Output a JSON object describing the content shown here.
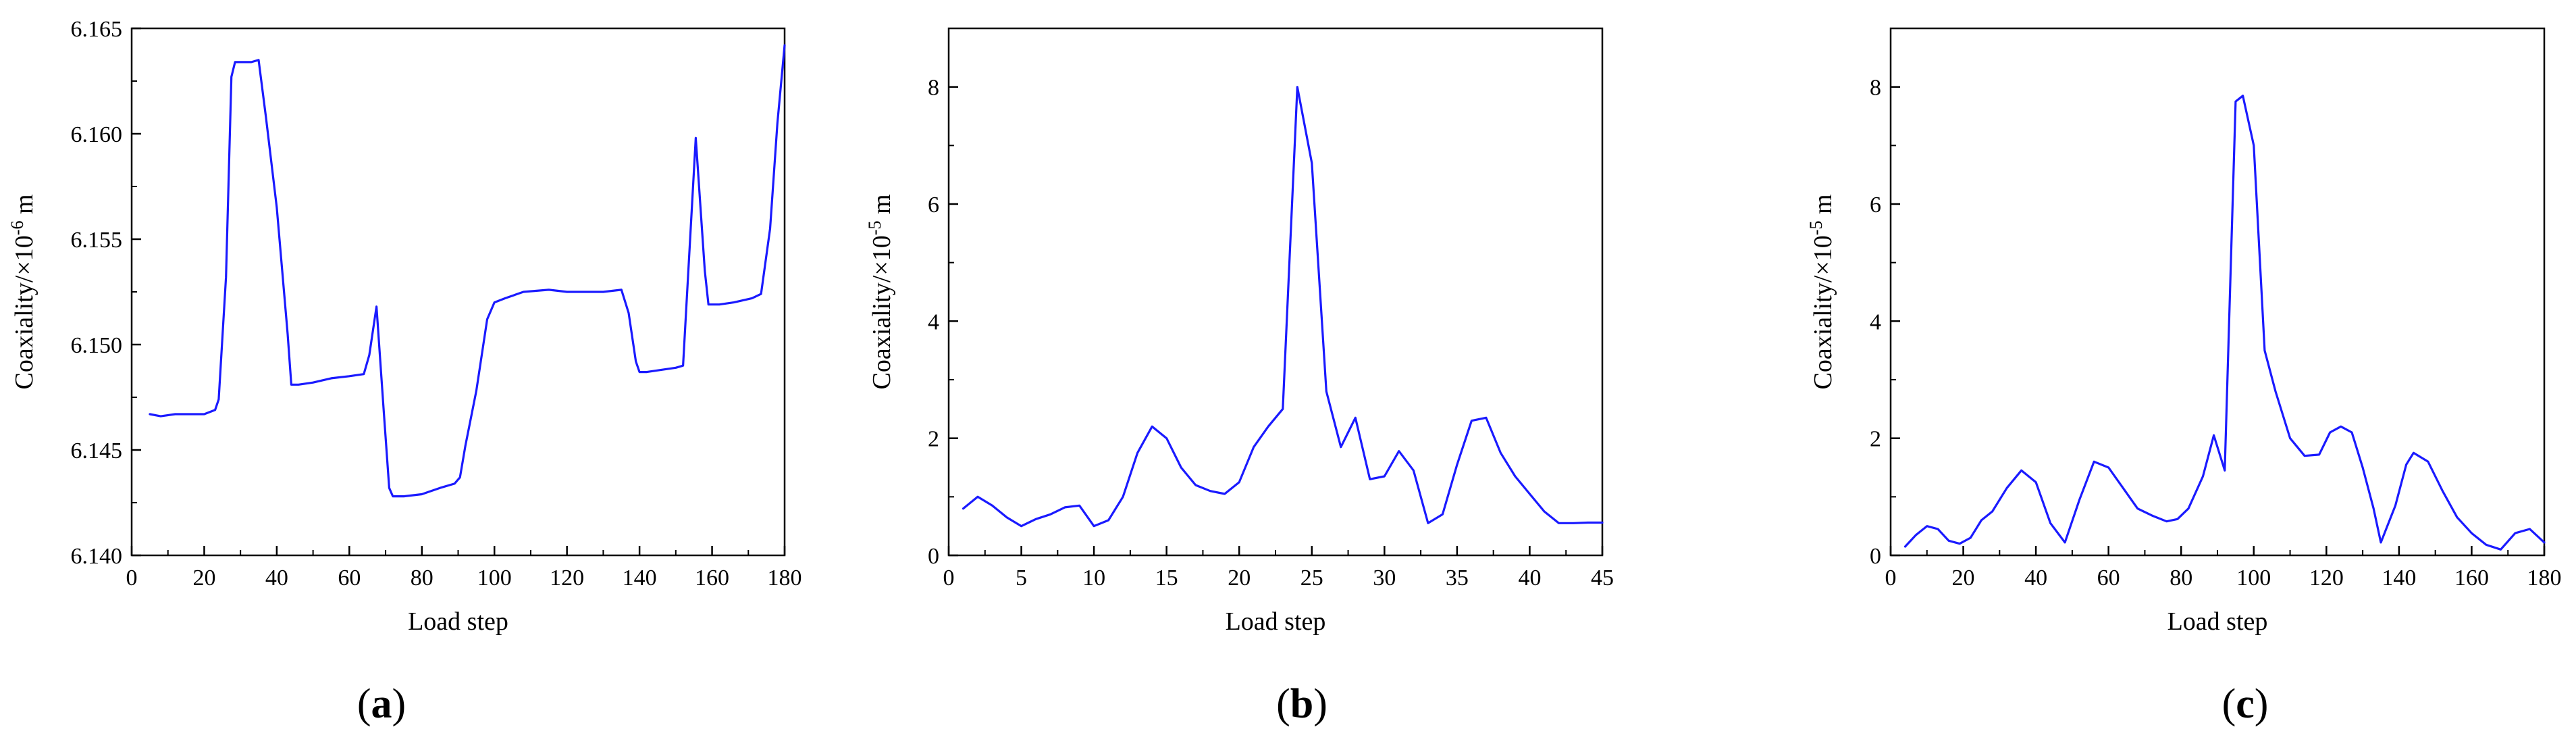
{
  "figure": {
    "panels": [
      "a",
      "b",
      "c"
    ],
    "colors": {
      "line": "#1a1aff",
      "axis": "#000000",
      "background": "#ffffff"
    }
  },
  "chart_data": [
    {
      "type": "line",
      "caption": "a",
      "xlabel": "Load step",
      "ylabel": "Coaxiality/×10",
      "ylabel_exp": "-6",
      "ylabel_unit": " m",
      "xlim": [
        0,
        180
      ],
      "ylim": [
        6.14,
        6.165
      ],
      "xticks": [
        "0",
        "20",
        "40",
        "60",
        "80",
        "100",
        "120",
        "140",
        "160",
        "180"
      ],
      "yticks": [
        "6.140",
        "6.145",
        "6.150",
        "6.155",
        "6.160",
        "6.165"
      ],
      "grid": false,
      "legend": "none",
      "series": [
        {
          "color": "#1a1aff",
          "x": [
            5,
            8,
            12,
            16,
            20,
            23,
            24,
            26,
            27.5,
            28.5,
            30,
            33,
            35,
            37,
            40,
            43,
            44,
            46,
            50,
            55,
            60,
            64,
            65.5,
            67.5,
            69.5,
            71,
            72,
            75,
            80,
            85,
            89,
            90.5,
            92,
            95,
            98,
            100,
            103,
            108,
            115,
            120,
            125,
            130,
            135,
            137,
            139,
            140,
            142,
            146,
            150,
            152,
            155.5,
            158,
            159,
            162,
            166,
            171,
            173.5,
            176,
            178,
            180
          ],
          "y": [
            6.1467,
            6.1466,
            6.1467,
            6.1467,
            6.1467,
            6.1469,
            6.1474,
            6.1532,
            6.1627,
            6.1634,
            6.1634,
            6.1634,
            6.1635,
            6.1608,
            6.1565,
            6.1505,
            6.1481,
            6.1481,
            6.1482,
            6.1484,
            6.1485,
            6.1486,
            6.1495,
            6.1518,
            6.1468,
            6.1432,
            6.1428,
            6.1428,
            6.1429,
            6.1432,
            6.1434,
            6.1437,
            6.1452,
            6.1478,
            6.1512,
            6.152,
            6.1522,
            6.1525,
            6.1526,
            6.1525,
            6.1525,
            6.1525,
            6.1526,
            6.1515,
            6.1492,
            6.1487,
            6.1487,
            6.1488,
            6.1489,
            6.149,
            6.1598,
            6.1535,
            6.1519,
            6.1519,
            6.152,
            6.1522,
            6.1524,
            6.1555,
            6.1605,
            6.1642
          ]
        }
      ]
    },
    {
      "type": "line",
      "caption": "b",
      "xlabel": "Load step",
      "ylabel": "Coaxiality/×10",
      "ylabel_exp": "-5",
      "ylabel_unit": " m",
      "xlim": [
        0,
        45
      ],
      "ylim": [
        0,
        9
      ],
      "xticks": [
        "0",
        "5",
        "10",
        "15",
        "20",
        "25",
        "30",
        "35",
        "40",
        "45"
      ],
      "yticks": [
        "0",
        "2",
        "4",
        "6",
        "8"
      ],
      "grid": false,
      "legend": "none",
      "series": [
        {
          "color": "#1a1aff",
          "x": [
            1,
            2,
            3,
            4,
            5,
            6,
            7,
            8,
            9,
            10,
            11,
            12,
            13,
            14,
            15,
            16,
            17,
            18,
            19,
            20,
            21,
            22,
            23,
            24,
            25,
            26,
            27,
            28,
            29,
            30,
            31,
            32,
            33,
            34,
            35,
            36,
            37,
            38,
            39,
            40,
            41,
            42,
            43,
            44,
            45
          ],
          "y": [
            0.8,
            1.0,
            0.85,
            0.65,
            0.5,
            0.62,
            0.7,
            0.82,
            0.85,
            0.5,
            0.6,
            1.0,
            1.75,
            2.2,
            2.0,
            1.5,
            1.2,
            1.1,
            1.05,
            1.25,
            1.85,
            2.2,
            2.5,
            8.0,
            6.7,
            2.8,
            1.85,
            2.35,
            1.3,
            1.35,
            1.78,
            1.45,
            0.55,
            0.7,
            1.55,
            2.3,
            2.35,
            1.75,
            1.35,
            1.05,
            0.75,
            0.55,
            0.55,
            0.56,
            0.56
          ]
        }
      ]
    },
    {
      "type": "line",
      "caption": "c",
      "xlabel": "Load step",
      "ylabel": "Coaxiality/×10",
      "ylabel_exp": "-5",
      "ylabel_unit": " m",
      "xlim": [
        0,
        180
      ],
      "ylim": [
        0,
        9
      ],
      "xticks": [
        "0",
        "20",
        "40",
        "60",
        "80",
        "100",
        "120",
        "140",
        "160",
        "180"
      ],
      "yticks": [
        "0",
        "2",
        "4",
        "6",
        "8"
      ],
      "grid": false,
      "legend": "none",
      "series": [
        {
          "color": "#1a1aff",
          "x": [
            4,
            7,
            10,
            13,
            16,
            19,
            22,
            25,
            28,
            32,
            36,
            40,
            44,
            48,
            52,
            56,
            60,
            64,
            68,
            72,
            76,
            79,
            82,
            86,
            89,
            92,
            95,
            97,
            100,
            103,
            106,
            110,
            114,
            118,
            121,
            124,
            127,
            130,
            133,
            135,
            139,
            142,
            144,
            148,
            152,
            156,
            160,
            164,
            168,
            172,
            176,
            180
          ],
          "y": [
            0.15,
            0.35,
            0.5,
            0.45,
            0.25,
            0.2,
            0.3,
            0.6,
            0.75,
            1.15,
            1.45,
            1.25,
            0.55,
            0.22,
            0.95,
            1.6,
            1.5,
            1.15,
            0.8,
            0.68,
            0.58,
            0.62,
            0.8,
            1.35,
            2.05,
            1.45,
            7.75,
            7.85,
            7.0,
            3.5,
            2.8,
            2.0,
            1.7,
            1.72,
            2.1,
            2.2,
            2.1,
            1.5,
            0.8,
            0.22,
            0.85,
            1.55,
            1.75,
            1.6,
            1.1,
            0.65,
            0.38,
            0.18,
            0.1,
            0.38,
            0.45,
            0.22
          ]
        }
      ]
    }
  ]
}
